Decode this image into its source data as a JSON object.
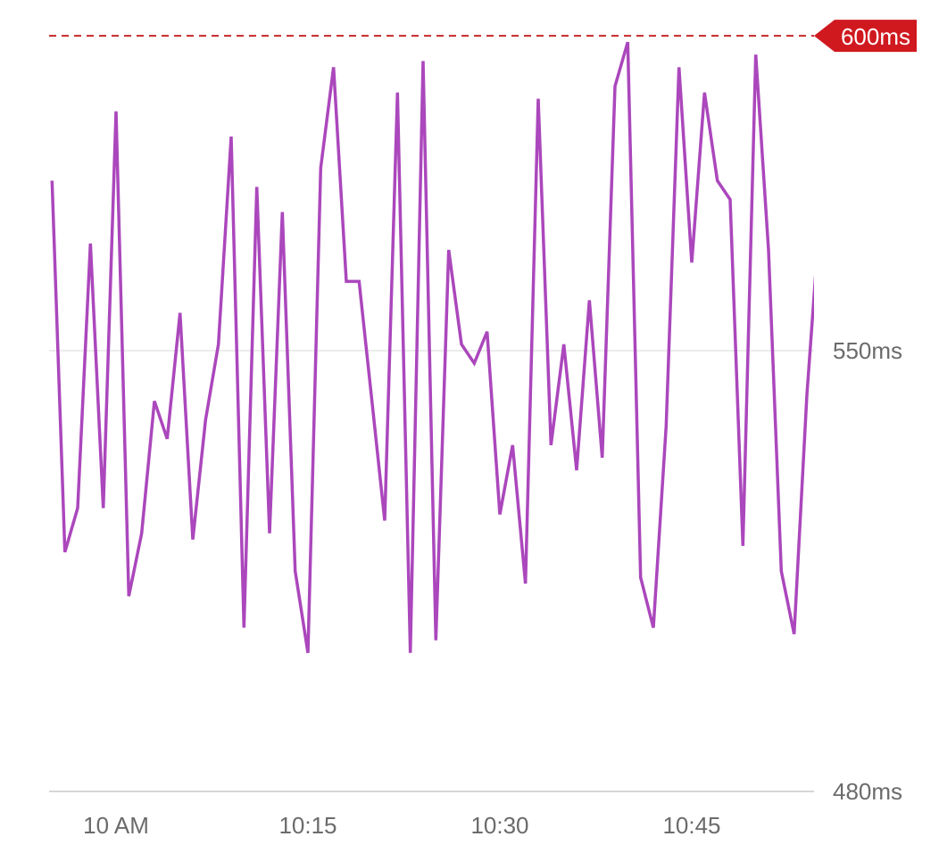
{
  "chart_data": {
    "type": "line",
    "title": "",
    "xlabel": "",
    "ylabel": "",
    "unit": "ms",
    "ylim": [
      480,
      600
    ],
    "xlim": [
      "09:54:46",
      "10:54:34"
    ],
    "grid": true,
    "x_ticks": [
      {
        "time": "10:00",
        "label": "10 AM"
      },
      {
        "time": "10:15",
        "label": "10:15"
      },
      {
        "time": "10:30",
        "label": "10:30"
      },
      {
        "time": "10:45",
        "label": "10:45"
      }
    ],
    "y_ticks": [
      {
        "value": 480,
        "label": "480ms"
      },
      {
        "value": 550,
        "label": "550ms"
      }
    ],
    "threshold": {
      "value": 600,
      "label": "600ms",
      "color": "#d0191f",
      "style": "dashed"
    },
    "line_color": "#ab47bc",
    "series": [
      {
        "x": [
          "09:55",
          "09:56",
          "09:57",
          "09:58",
          "09:59",
          "10:00",
          "10:01",
          "10:02",
          "10:03",
          "10:04",
          "10:05",
          "10:06",
          "10:07",
          "10:08",
          "10:09",
          "10:10",
          "10:11",
          "10:12",
          "10:13",
          "10:14",
          "10:15",
          "10:16",
          "10:17",
          "10:18",
          "10:19",
          "10:20",
          "10:21",
          "10:22",
          "10:23",
          "10:24",
          "10:25",
          "10:26",
          "10:27",
          "10:28",
          "10:29",
          "10:30",
          "10:31",
          "10:32",
          "10:33",
          "10:34",
          "10:35",
          "10:36",
          "10:37",
          "10:38",
          "10:39",
          "10:40",
          "10:41",
          "10:42",
          "10:43",
          "10:44",
          "10:45",
          "10:46",
          "10:47",
          "10:48",
          "10:49",
          "10:50",
          "10:51",
          "10:52",
          "10:53",
          "10:54",
          "10:55"
        ],
        "values": [
          577,
          518,
          525,
          567,
          525,
          588,
          511,
          521,
          542,
          536,
          556,
          520,
          539,
          551,
          584,
          506,
          576,
          521,
          572,
          515,
          502,
          579,
          595,
          561,
          561,
          542,
          523,
          591,
          502,
          596,
          504,
          566,
          551,
          548,
          553,
          524,
          535,
          513,
          590,
          535,
          551,
          531,
          558,
          533,
          592,
          599,
          514,
          506,
          538,
          595,
          564,
          591,
          577,
          574,
          519,
          597,
          566,
          515,
          505,
          543,
          571
        ]
      }
    ]
  }
}
